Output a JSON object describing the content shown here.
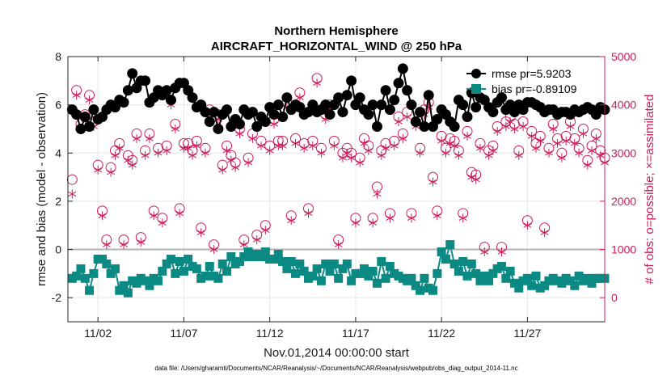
{
  "chart_data": {
    "type": "line",
    "title": "Northern Hemisphere",
    "subtitle": "AIRCRAFT_HORIZONTAL_WIND @ 250 hPa",
    "xlabel": "Nov.01,2014 00:00:00 start",
    "ylabel": "rmse and bias (model - observation)",
    "y2label": "# of obs: o=possible; ×=assimilated",
    "footnote": "data file: /Users/gharamti/Documents/NCAR/Reanalysis/~/Documents/NCAR/Reanalysis/webpub/obs_diag_output_2014-11.nc",
    "xlim": [
      0.25,
      31.5
    ],
    "ylim": [
      -3,
      8
    ],
    "y2lim": [
      -500,
      5000
    ],
    "yticks": [
      -2,
      0,
      2,
      4,
      6,
      8
    ],
    "y2ticks": [
      0,
      1000,
      2000,
      3000,
      4000,
      5000
    ],
    "xtick_values": [
      2,
      7,
      12,
      17,
      22,
      27
    ],
    "xtick_labels": [
      "11/02",
      "11/07",
      "11/12",
      "11/17",
      "11/22",
      "11/27"
    ],
    "x_start": 0.5,
    "x_step": 0.25,
    "colors": {
      "rmse": "#000000",
      "bias": "#0b8a83",
      "obs": "#cc1c5c",
      "zero": "#b3b3b3",
      "axis": "#262626"
    },
    "series": [
      {
        "name": "rmse",
        "legend": "rmse pr=5.9203",
        "values": [
          5.8,
          5.6,
          5.0,
          5.5,
          5.1,
          5.8,
          5.4,
          5.5,
          5.8,
          6.0,
          5.9,
          6.2,
          6.1,
          6.6,
          7.3,
          6.7,
          7.0,
          7.0,
          6.1,
          6.3,
          6.6,
          6.4,
          6.6,
          6.2,
          6.7,
          6.9,
          6.9,
          6.6,
          6.3,
          5.9,
          6.0,
          5.7,
          5.3,
          5.7,
          5.0,
          5.6,
          5.8,
          5.1,
          5.4,
          5.2,
          5.8,
          5.6,
          5.7,
          5.1,
          5.5,
          5.3,
          5.9,
          5.6,
          6.0,
          5.5,
          6.3,
          5.8,
          6.0,
          5.9,
          5.6,
          5.7,
          6.0,
          5.7,
          5.8,
          6.0,
          5.6,
          6.0,
          6.3,
          5.7,
          6.4,
          7.0,
          6.0,
          6.3,
          5.8,
          5.6,
          6.0,
          5.1,
          6.0,
          6.6,
          5.8,
          6.2,
          6.9,
          7.5,
          6.6,
          6.0,
          5.3,
          5.7,
          5.1,
          6.4,
          5.1,
          5.4,
          5.8,
          5.6,
          5.3,
          5.1,
          6.2,
          6.0,
          5.5,
          6.5,
          5.9,
          6.3,
          6.2,
          5.9,
          5.7,
          6.1,
          6.3,
          5.8,
          6.0,
          5.7,
          6.0,
          5.8,
          6.1,
          6.1,
          6.0,
          5.9,
          5.7,
          5.8,
          5.8,
          5.6,
          5.7,
          5.7,
          5.6,
          5.8,
          5.7,
          5.8,
          5.9,
          5.8,
          5.6,
          5.9,
          5.8
        ]
      },
      {
        "name": "bias",
        "legend": "bias pr=-0.89109",
        "values": [
          -1.2,
          -1.1,
          -0.8,
          -1.2,
          -1.7,
          -1.0,
          -0.4,
          -0.4,
          -0.6,
          -1.0,
          -0.8,
          -1.7,
          -1.5,
          -1.8,
          -1.3,
          -1.4,
          -1.2,
          -1.3,
          -1.5,
          -1.2,
          -1.3,
          -0.9,
          -0.6,
          -0.4,
          -1.0,
          -0.5,
          -0.9,
          -0.4,
          -0.7,
          -0.8,
          -1.2,
          -1.1,
          -0.7,
          -1.1,
          -1.2,
          -0.6,
          -0.9,
          -0.3,
          -0.6,
          -0.5,
          -0.3,
          -0.1,
          -0.3,
          -0.2,
          -0.3,
          -0.1,
          -0.4,
          -0.4,
          -0.2,
          -0.5,
          -0.8,
          -0.5,
          -1.0,
          -0.6,
          -0.9,
          -1.2,
          -1.1,
          -0.8,
          -1.3,
          -0.6,
          -0.9,
          -0.6,
          -1.2,
          -0.8,
          -0.6,
          -1.3,
          -1.0,
          -1.0,
          -0.8,
          -1.1,
          -0.9,
          -1.4,
          -0.5,
          -1.2,
          -0.7,
          -1.0,
          -1.1,
          -1.2,
          -1.3,
          -1.2,
          -1.5,
          -1.7,
          -1.2,
          -1.6,
          -1.7,
          -1.0,
          -0.1,
          -0.4,
          0.2,
          -0.6,
          -0.9,
          -0.5,
          -1.1,
          -0.6,
          -1.0,
          -1.3,
          -1.1,
          -1.3,
          -1.0,
          -0.8,
          -0.7,
          -1.2,
          -0.9,
          -1.4,
          -1.6,
          -1.3,
          -1.2,
          -1.5,
          -1.1,
          -1.6,
          -1.5,
          -1.3,
          -1.2,
          -1.3,
          -1.4,
          -1.2,
          -1.3,
          -1.5,
          -1.1,
          -1.3,
          -1.2,
          -1.4,
          -1.2,
          -1.2,
          -1.2
        ]
      },
      {
        "name": "obs_possible",
        "marker": "o",
        "values": [
          2450,
          4300,
          3600,
          3800,
          4200,
          3650,
          2750,
          1800,
          1200,
          2700,
          3050,
          3200,
          1200,
          2950,
          2850,
          3400,
          1250,
          3050,
          3400,
          1800,
          3100,
          1650,
          3150,
          4100,
          3600,
          1850,
          3200,
          3200,
          3050,
          3250,
          1450,
          3100,
          3900,
          1100,
          3800,
          2750,
          3150,
          2950,
          2800,
          3500,
          1200,
          2900,
          3400,
          1300,
          3250,
          1500,
          3150,
          3700,
          3250,
          3250,
          4050,
          1700,
          3300,
          4250,
          3200,
          1850,
          3250,
          4550,
          3100,
          3800,
          4000,
          3250,
          1200,
          3000,
          3100,
          3000,
          1650,
          2900,
          3300,
          3150,
          1650,
          2300,
          3050,
          3200,
          1750,
          3250,
          3750,
          3400,
          3850,
          1750,
          3650,
          3100,
          3900,
          4050,
          2500,
          1800,
          3350,
          3100,
          3300,
          3250,
          3050,
          1750,
          3450,
          2600,
          2550,
          3200,
          1050,
          3050,
          3150,
          3550,
          1050,
          3650,
          3750,
          3600,
          3050,
          3650,
          1600,
          3450,
          3200,
          3350,
          1450,
          3100,
          3600,
          3300,
          3000,
          3350,
          3650,
          3300,
          3100,
          3500,
          2850,
          3150,
          3400,
          3050,
          2900
        ]
      },
      {
        "name": "obs_assimilated",
        "marker": "x",
        "values": [
          2150,
          4200,
          3500,
          3700,
          4100,
          3550,
          2650,
          1700,
          1100,
          2600,
          2950,
          3100,
          1100,
          2850,
          2750,
          3300,
          1150,
          2950,
          3300,
          1700,
          3000,
          1550,
          3050,
          4000,
          3500,
          1750,
          3100,
          3100,
          2950,
          3150,
          1350,
          3000,
          3800,
          1000,
          3700,
          2650,
          3050,
          2850,
          2700,
          3400,
          1100,
          2800,
          3300,
          1200,
          3150,
          1400,
          3050,
          3600,
          3150,
          3150,
          3950,
          1600,
          3200,
          4150,
          3100,
          1750,
          3150,
          4450,
          3000,
          3700,
          3900,
          3150,
          1100,
          2900,
          3000,
          2900,
          1550,
          2800,
          3200,
          3050,
          1550,
          2150,
          2950,
          3100,
          1650,
          3150,
          3650,
          3300,
          3750,
          1650,
          3550,
          3000,
          3800,
          3950,
          2400,
          1700,
          3250,
          3000,
          3200,
          3150,
          2950,
          1650,
          3350,
          2500,
          2450,
          3100,
          950,
          2950,
          3050,
          3450,
          950,
          3550,
          3650,
          3500,
          2950,
          3550,
          1500,
          3350,
          3100,
          3250,
          1350,
          3000,
          3500,
          3200,
          2900,
          3250,
          3550,
          3200,
          3000,
          3400,
          2750,
          3050,
          3300,
          2950,
          2800
        ]
      }
    ]
  }
}
